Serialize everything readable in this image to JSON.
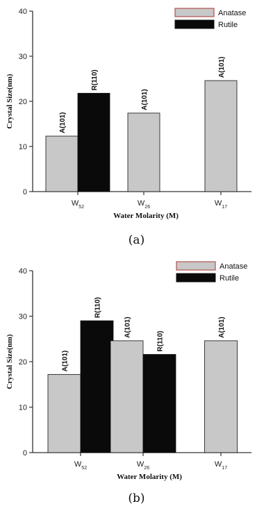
{
  "chart_data": [
    {
      "type": "bar",
      "caption": "(a)",
      "ylabel": "Crystal Size(nm)",
      "xlabel": "Water Molarity (M)",
      "ylim": [
        0,
        40
      ],
      "yticks": [
        "0",
        "10",
        "20",
        "30",
        "40"
      ],
      "categories": [
        {
          "base": "W",
          "sub": "52"
        },
        {
          "base": "W",
          "sub": "26"
        },
        {
          "base": "W",
          "sub": "17"
        }
      ],
      "legend": {
        "placement": "top-right",
        "entries": [
          {
            "name": "Anatase",
            "color": "#c8c8c8"
          },
          {
            "name": "Rutile",
            "color": "#0a0a0a"
          }
        ]
      },
      "series": [
        {
          "name": "Anatase",
          "color": "#c8c8c8",
          "values": [
            12.3,
            17.4,
            24.6
          ],
          "labels": [
            "A(101)",
            "A(101)",
            "A(101)"
          ]
        },
        {
          "name": "Rutile",
          "color": "#0a0a0a",
          "values": [
            21.8,
            null,
            null
          ],
          "labels": [
            "R(110)",
            "",
            ""
          ]
        }
      ]
    },
    {
      "type": "bar",
      "caption": "(b)",
      "ylabel": "Crystal Size(nm)",
      "xlabel": "Water Molarity (M)",
      "ylim": [
        0,
        40
      ],
      "yticks": [
        "0",
        "10",
        "20",
        "30",
        "40"
      ],
      "categories": [
        {
          "base": "W",
          "sub": "52"
        },
        {
          "base": "W",
          "sub": "26"
        },
        {
          "base": "W",
          "sub": "17"
        }
      ],
      "legend": {
        "placement": "top-right",
        "entries": [
          {
            "name": "Anatase",
            "color": "#c8c8c8"
          },
          {
            "name": "Rutile",
            "color": "#0a0a0a"
          }
        ]
      },
      "series": [
        {
          "name": "Anatase",
          "color": "#c8c8c8",
          "values": [
            17.2,
            24.6,
            24.6
          ],
          "labels": [
            "A(101)",
            "A(101)",
            "A(101)"
          ]
        },
        {
          "name": "Rutile",
          "color": "#0a0a0a",
          "values": [
            29.0,
            21.6,
            null
          ],
          "labels": [
            "R(110)",
            "R(110)",
            ""
          ]
        }
      ]
    }
  ]
}
